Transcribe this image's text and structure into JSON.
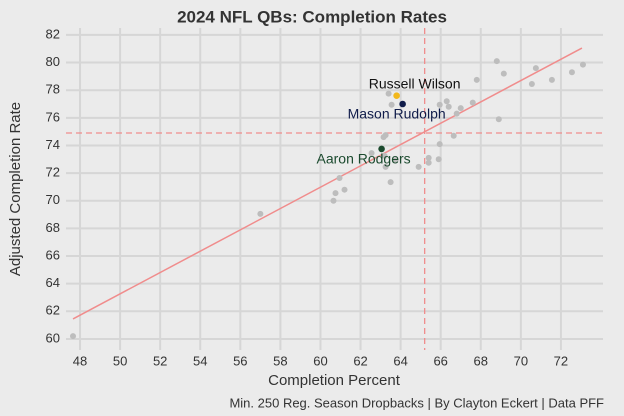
{
  "chart_data": {
    "type": "scatter",
    "title": "2024 NFL QBs: Completion Rates",
    "x_label": "Completion Percent",
    "y_label": "Adjusted Completion Rate",
    "caption": "Min. 250 Reg. Season Dropbacks | By Clayton Eckert | Data PFF",
    "xlim": [
      47.3,
      74.1
    ],
    "ylim": [
      59.2,
      82.5
    ],
    "xticks": [
      48,
      50,
      52,
      54,
      56,
      58,
      60,
      62,
      64,
      66,
      68,
      70,
      72
    ],
    "yticks": [
      60,
      62,
      64,
      66,
      68,
      70,
      72,
      74,
      76,
      78,
      80,
      82
    ],
    "grid": true,
    "point_color": "#bdbdbd",
    "x": [
      47.65,
      57.0,
      60.65,
      60.75,
      60.95,
      61.2,
      62.55,
      63.15,
      63.25,
      63.25,
      63.5,
      63.55,
      63.4,
      63.2,
      63.75,
      64.9,
      65.4,
      65.4,
      65.9,
      65.95,
      65.95,
      66.3,
      66.4,
      66.65,
      66.8,
      67.0,
      67.6,
      67.8,
      68.8,
      68.9,
      69.15,
      70.55,
      70.75,
      71.55,
      72.55,
      73.1
    ],
    "y": [
      60.2,
      69.05,
      70.0,
      70.55,
      71.65,
      70.8,
      73.45,
      74.6,
      74.75,
      72.45,
      71.35,
      76.95,
      77.75,
      73.25,
      72.95,
      72.45,
      73.1,
      72.75,
      73.0,
      74.1,
      76.95,
      77.2,
      76.8,
      74.7,
      76.3,
      76.7,
      77.1,
      78.75,
      80.1,
      75.9,
      79.2,
      78.45,
      79.6,
      78.75,
      79.3,
      79.85
    ],
    "highlights": [
      {
        "label": "Russell Wilson",
        "x": 63.8,
        "y": 77.6,
        "color": "#f2b81c",
        "label_color": "#111111"
      },
      {
        "label": "Mason Rudolph",
        "x": 64.1,
        "y": 77.0,
        "color": "#101c4a",
        "label_color": "#101c4a"
      },
      {
        "label": "Aaron Rodgers",
        "x": 63.05,
        "y": 73.75,
        "color": "#1b4a2e",
        "label_color": "#1b4a2e"
      }
    ],
    "trend_line": {
      "x": [
        47.65,
        73.05
      ],
      "y": [
        61.45,
        81.05
      ],
      "color": "#f08c8c"
    },
    "reference_lines": {
      "x": 65.2,
      "y": 74.9,
      "color": "#f08c8c"
    }
  }
}
